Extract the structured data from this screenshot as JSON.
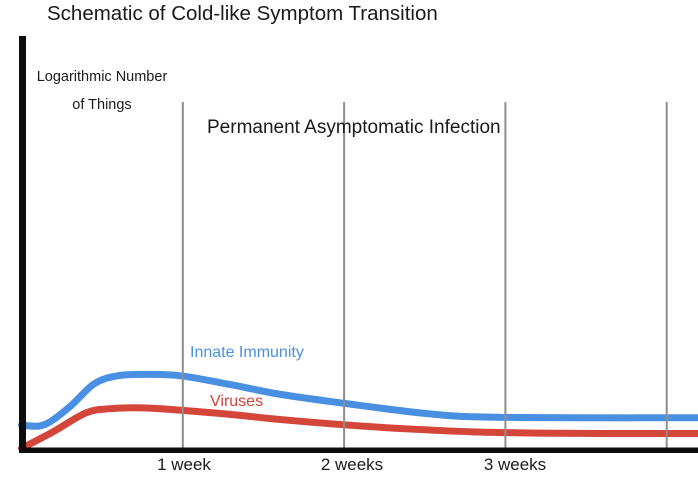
{
  "colors": {
    "background": "#ffffff",
    "axis": "#0d0d0d",
    "grid": "#8e8e8e",
    "text": "#1a1a1a",
    "innate_immunity": "#4a90e2",
    "viruses": "#d4453a"
  },
  "chart_data": {
    "type": "line",
    "title": "Schematic of Cold-like Symptom Transition",
    "ylabel": "Logarithmic Number of Things",
    "ylabel_lines": [
      "Logarithmic Number",
      "of Things"
    ],
    "annotation": "Permanent Asymptomatic Infection",
    "xlabel": "",
    "x_unit": "weeks",
    "xlim": [
      0,
      4.2
    ],
    "ylim": [
      0,
      100
    ],
    "y_axis_ticks": "none (schematic, arbitrary log units)",
    "grid": "vertical gridlines only",
    "gridlines_at_weeks": [
      1,
      2,
      3,
      4
    ],
    "x_ticks": [
      {
        "week": 1,
        "label": "1 week"
      },
      {
        "week": 2,
        "label": "2 weeks"
      },
      {
        "week": 3,
        "label": "3 weeks"
      }
    ],
    "legend_position": "inline labels above curves",
    "series": [
      {
        "name": "Innate Immunity",
        "color": "#4a90e2",
        "points": [
          [
            0,
            6.0
          ],
          [
            0.14,
            6.1
          ],
          [
            0.3,
            10.5
          ],
          [
            0.45,
            16.0
          ],
          [
            0.6,
            18.0
          ],
          [
            0.8,
            18.3
          ],
          [
            1.0,
            17.9
          ],
          [
            1.3,
            15.8
          ],
          [
            1.6,
            13.5
          ],
          [
            2.0,
            11.3
          ],
          [
            2.4,
            9.3
          ],
          [
            2.7,
            8.2
          ],
          [
            3.0,
            7.9
          ],
          [
            3.4,
            7.8
          ],
          [
            4.2,
            7.8
          ]
        ]
      },
      {
        "name": "Viruses",
        "color": "#d4453a",
        "points": [
          [
            0,
            0.4
          ],
          [
            0.2,
            4.5
          ],
          [
            0.4,
            9.0
          ],
          [
            0.55,
            10.0
          ],
          [
            0.75,
            10.2
          ],
          [
            1.0,
            9.6
          ],
          [
            1.3,
            8.6
          ],
          [
            1.6,
            7.4
          ],
          [
            2.0,
            6.1
          ],
          [
            2.4,
            5.1
          ],
          [
            2.8,
            4.4
          ],
          [
            3.2,
            4.1
          ],
          [
            3.6,
            4.0
          ],
          [
            4.2,
            4.0
          ]
        ]
      }
    ]
  }
}
